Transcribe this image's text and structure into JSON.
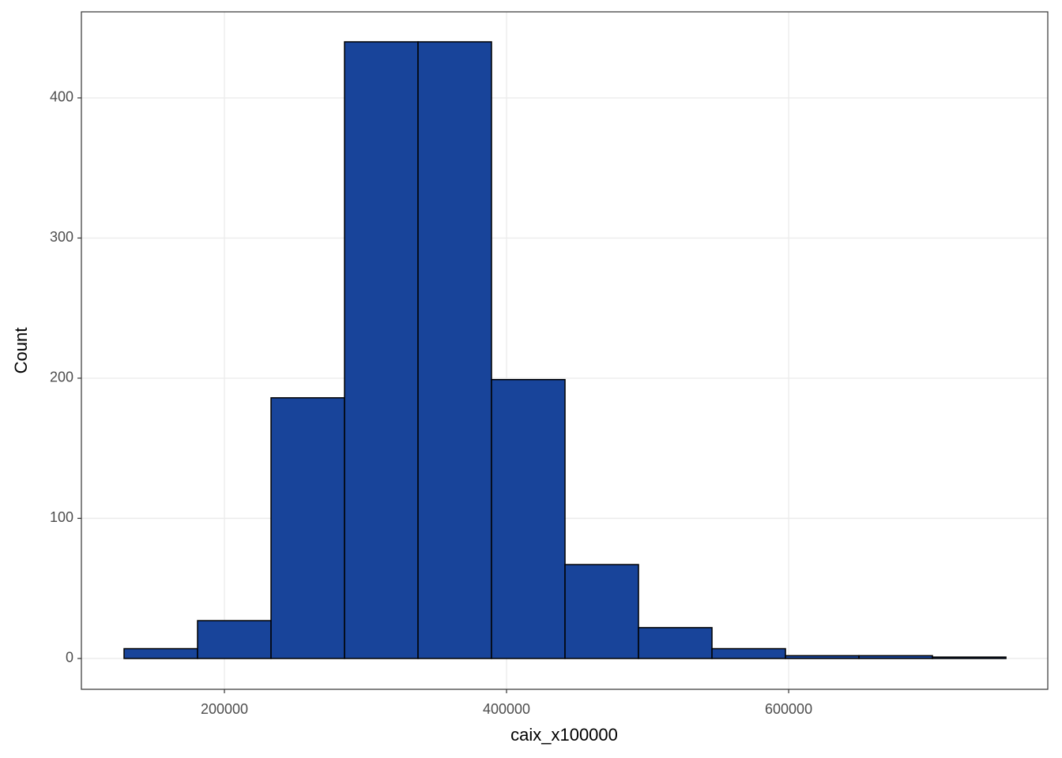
{
  "chart_data": {
    "type": "histogram",
    "x_label": "caix_x100000",
    "y_label": "Count",
    "bins": [
      128850,
      180950,
      233050,
      285150,
      337250,
      389350,
      441450,
      493550,
      545650,
      597750,
      649850,
      701950,
      754050
    ],
    "values": [
      7,
      27,
      186,
      440,
      440,
      199,
      67,
      22,
      7,
      2,
      2,
      1
    ],
    "color": "#18449a",
    "xlim": [
      98600,
      783700
    ],
    "ylim": [
      -22,
      461.4
    ],
    "xticks": [
      200000,
      400000,
      600000
    ],
    "yticks": [
      0,
      100,
      200,
      300,
      400
    ],
    "grid": true
  }
}
